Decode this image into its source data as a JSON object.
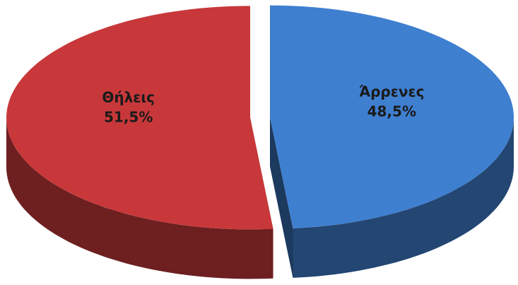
{
  "chart_data": {
    "type": "pie",
    "categories": [
      "Άρρενες",
      "Θήλεις"
    ],
    "values": [
      48.5,
      51.5
    ],
    "value_labels": [
      "48,5%",
      "51,5%"
    ],
    "colors": [
      "#3f7fd0",
      "#c8383a"
    ]
  }
}
